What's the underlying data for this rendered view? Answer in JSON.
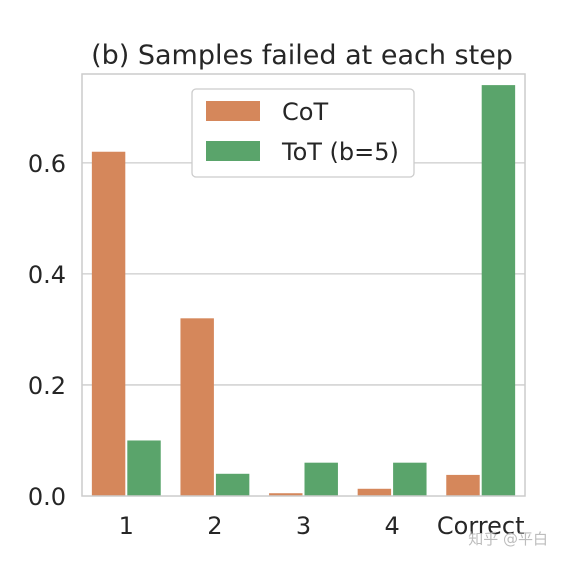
{
  "chart_data": {
    "type": "bar",
    "title": "(b) Samples failed at each step",
    "xlabel": "",
    "ylabel": "",
    "categories": [
      "1",
      "2",
      "3",
      "4",
      "Correct"
    ],
    "series": [
      {
        "name": "CoT",
        "color": "#d5875b",
        "values": [
          0.62,
          0.32,
          0.005,
          0.013,
          0.038
        ]
      },
      {
        "name": "ToT (b=5)",
        "color": "#5aa46b",
        "values": [
          0.1,
          0.04,
          0.06,
          0.06,
          0.74
        ]
      }
    ],
    "ylim": [
      0,
      0.76
    ],
    "yticks": [
      0.0,
      0.2,
      0.4,
      0.6
    ],
    "ytick_labels": [
      "0.0",
      "0.2",
      "0.4",
      "0.6"
    ],
    "grid": true,
    "legend_position": "top-center"
  },
  "watermark": "知乎 @平白"
}
